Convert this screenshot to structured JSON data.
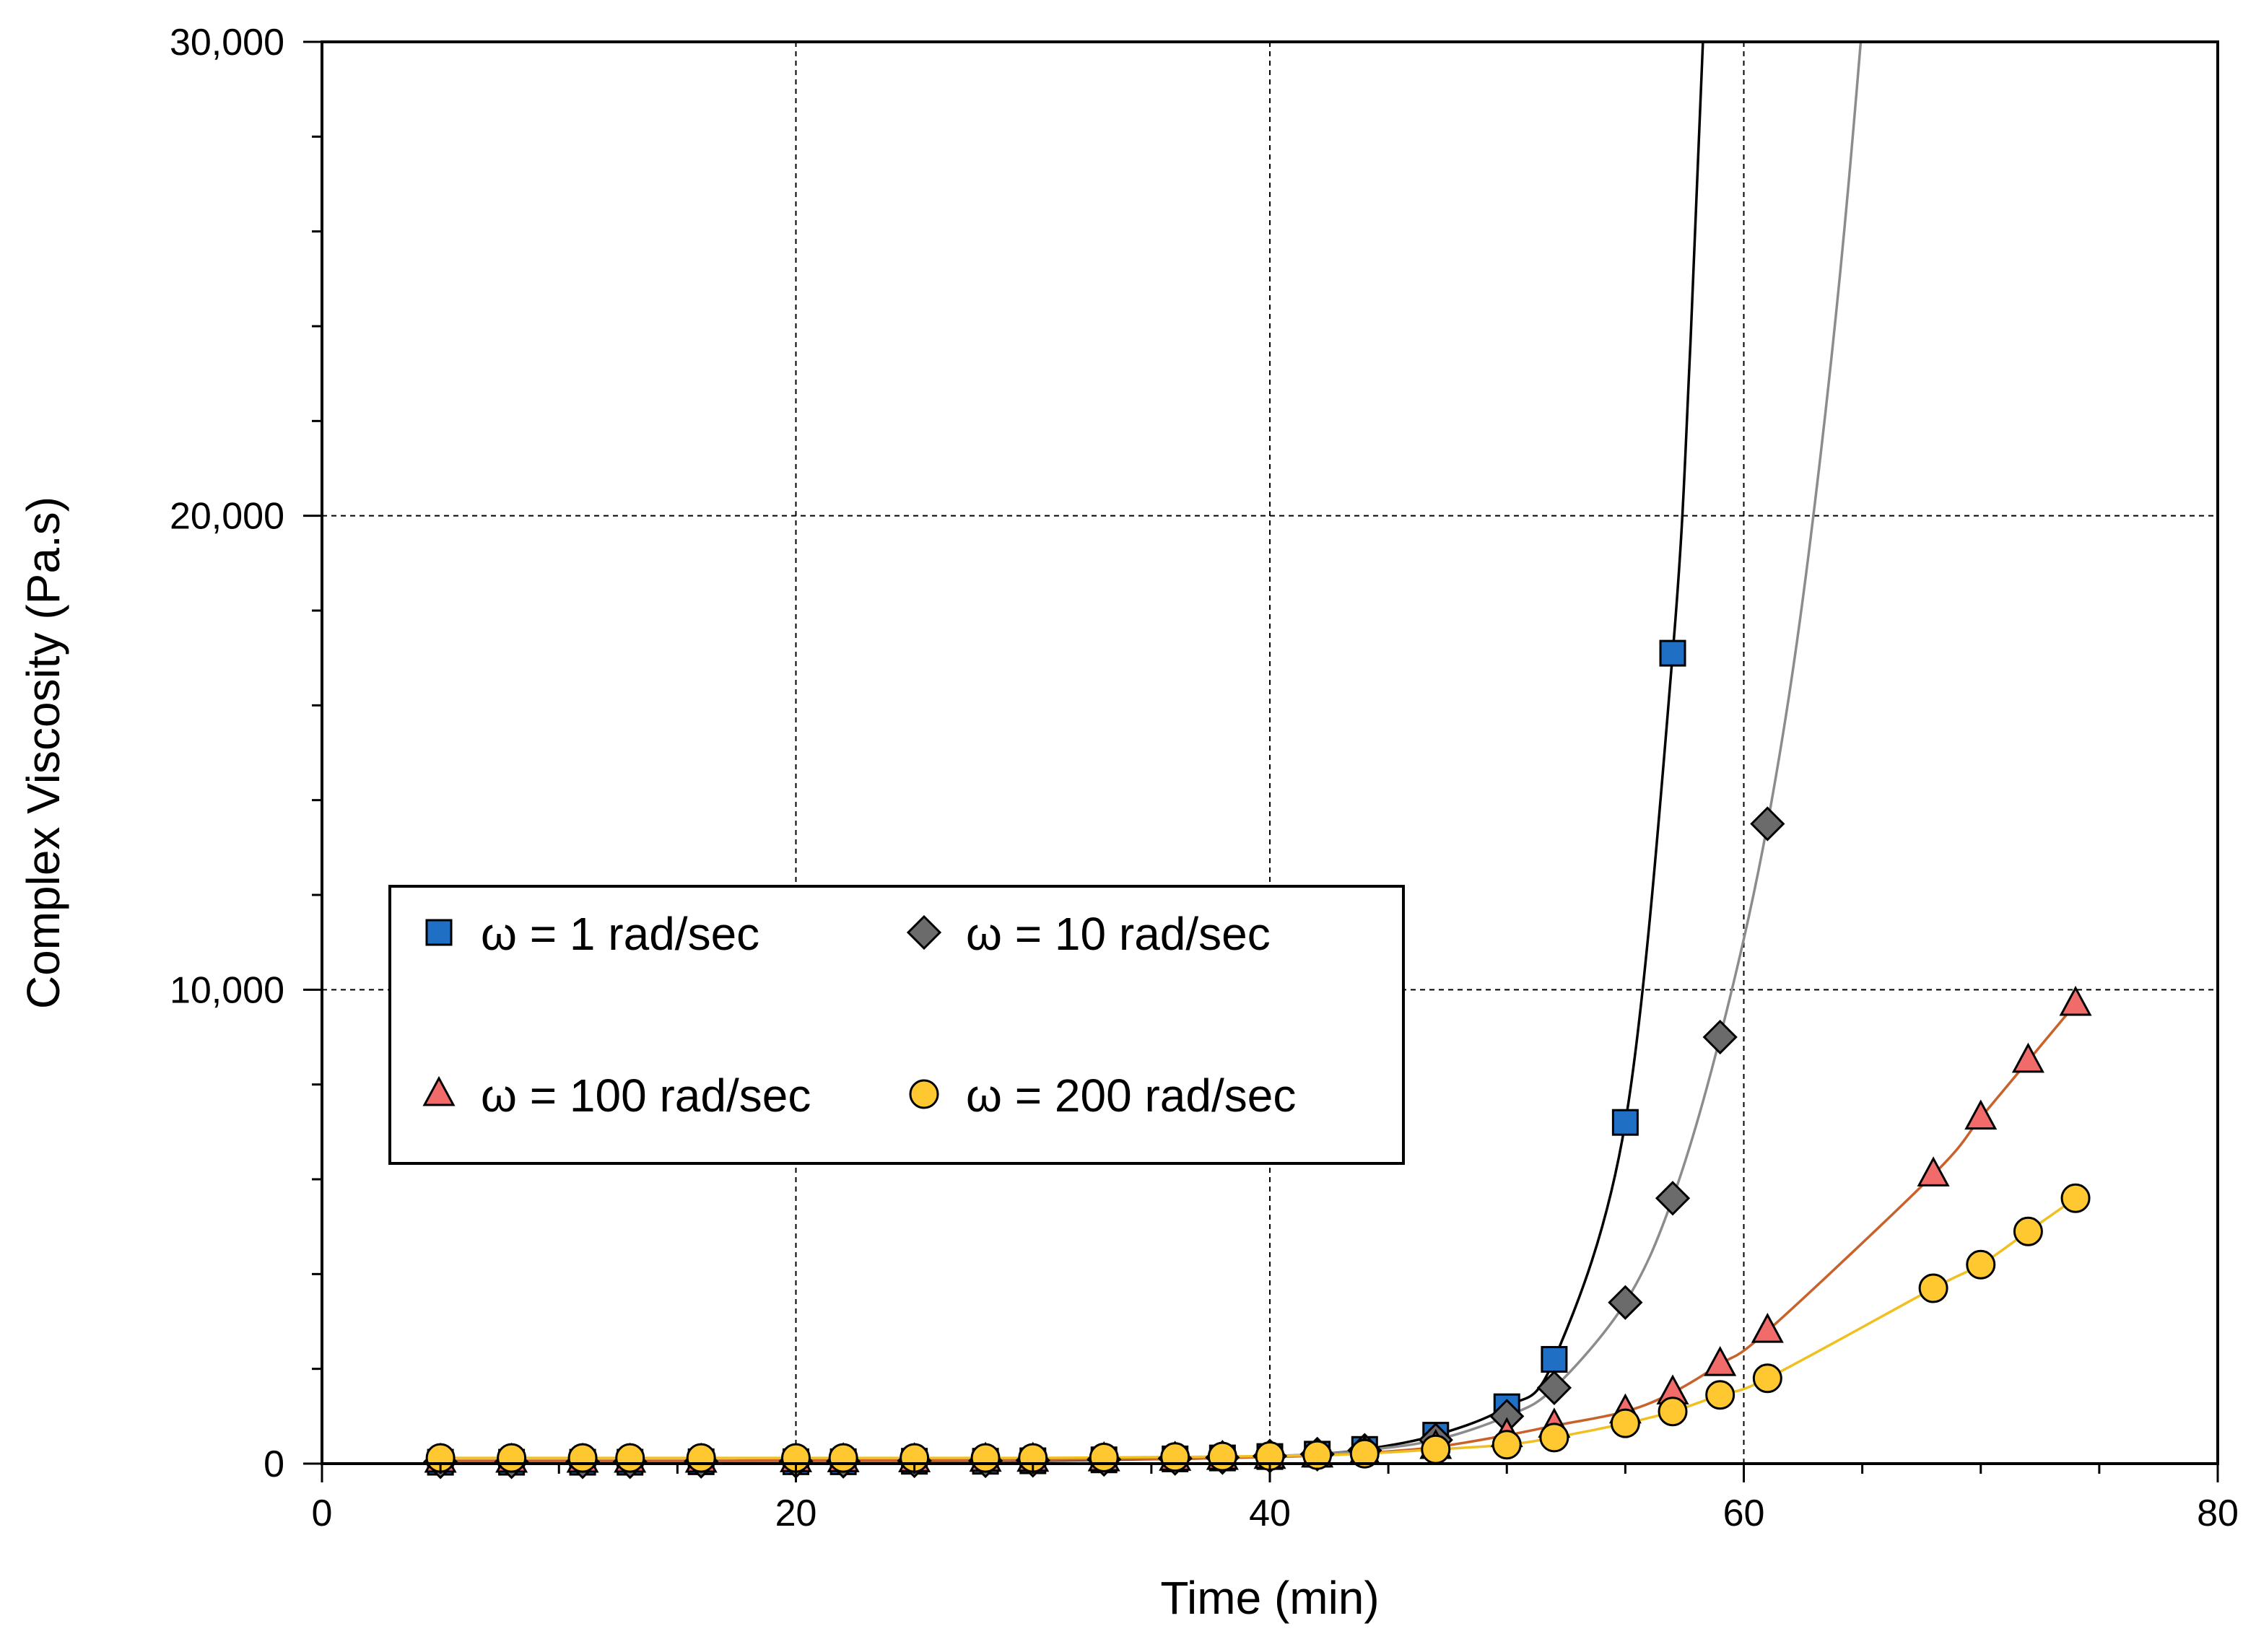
{
  "chart_data": {
    "type": "scatter",
    "title": "",
    "xlabel": "Time (min)",
    "ylabel": "Complex Viscosity (Pa.s)",
    "xlim": [
      0,
      80
    ],
    "ylim": [
      0,
      30000
    ],
    "x_ticks": [
      0,
      20,
      40,
      60,
      80
    ],
    "y_ticks": [
      0,
      10000,
      20000,
      30000
    ],
    "x_tick_labels": [
      "0",
      "20",
      "40",
      "60",
      "80"
    ],
    "y_tick_labels": [
      "0",
      "10,000",
      "20,000",
      "30,000"
    ],
    "grid": "dashed major gridlines",
    "legend_position": "center-left",
    "series": [
      {
        "name": "ω = 1 rad/sec",
        "marker": "square",
        "color": "#1f6fc4",
        "line_color": "#000000",
        "x": [
          5,
          8,
          11,
          13,
          16,
          20,
          22,
          25,
          28,
          30,
          33,
          36,
          38,
          40,
          42,
          44,
          47,
          50,
          52,
          55,
          57
        ],
        "y": [
          30,
          30,
          30,
          30,
          40,
          40,
          40,
          50,
          50,
          60,
          80,
          100,
          120,
          150,
          200,
          300,
          600,
          1200,
          2200,
          7200,
          17100
        ]
      },
      {
        "name": "ω = 10 rad/sec",
        "marker": "diamond",
        "color": "#6b6b6b",
        "line_color": "#8c8c8c",
        "x": [
          5,
          8,
          11,
          13,
          16,
          20,
          22,
          25,
          28,
          30,
          33,
          36,
          38,
          40,
          42,
          44,
          47,
          50,
          52,
          55,
          57,
          59,
          61
        ],
        "y": [
          40,
          40,
          40,
          40,
          50,
          50,
          50,
          60,
          60,
          70,
          90,
          110,
          130,
          160,
          200,
          280,
          500,
          1000,
          1600,
          3400,
          5600,
          9000,
          13500
        ]
      },
      {
        "name": "ω = 100 rad/sec",
        "marker": "triangle",
        "color": "#f26b6b",
        "line_color": "#c8622a",
        "x": [
          5,
          8,
          11,
          13,
          16,
          20,
          22,
          25,
          28,
          30,
          33,
          36,
          38,
          40,
          42,
          44,
          47,
          50,
          52,
          55,
          57,
          59,
          61,
          68,
          70,
          72,
          74
        ],
        "y": [
          60,
          60,
          60,
          60,
          60,
          70,
          70,
          70,
          80,
          80,
          90,
          100,
          120,
          140,
          170,
          220,
          350,
          600,
          800,
          1100,
          1500,
          2100,
          2800,
          6100,
          7300,
          8500,
          9700
        ]
      },
      {
        "name": "ω = 200 rad/sec",
        "marker": "circle",
        "color": "#ffc830",
        "line_color": "#f0c020",
        "x": [
          5,
          8,
          11,
          13,
          16,
          20,
          22,
          25,
          28,
          30,
          33,
          36,
          38,
          40,
          42,
          44,
          47,
          50,
          52,
          55,
          57,
          59,
          61,
          68,
          70,
          72,
          74
        ],
        "y": [
          120,
          120,
          120,
          120,
          120,
          120,
          120,
          120,
          120,
          120,
          130,
          140,
          150,
          160,
          180,
          210,
          300,
          400,
          550,
          850,
          1100,
          1450,
          1800,
          3700,
          4200,
          4900,
          5600
        ]
      }
    ]
  }
}
